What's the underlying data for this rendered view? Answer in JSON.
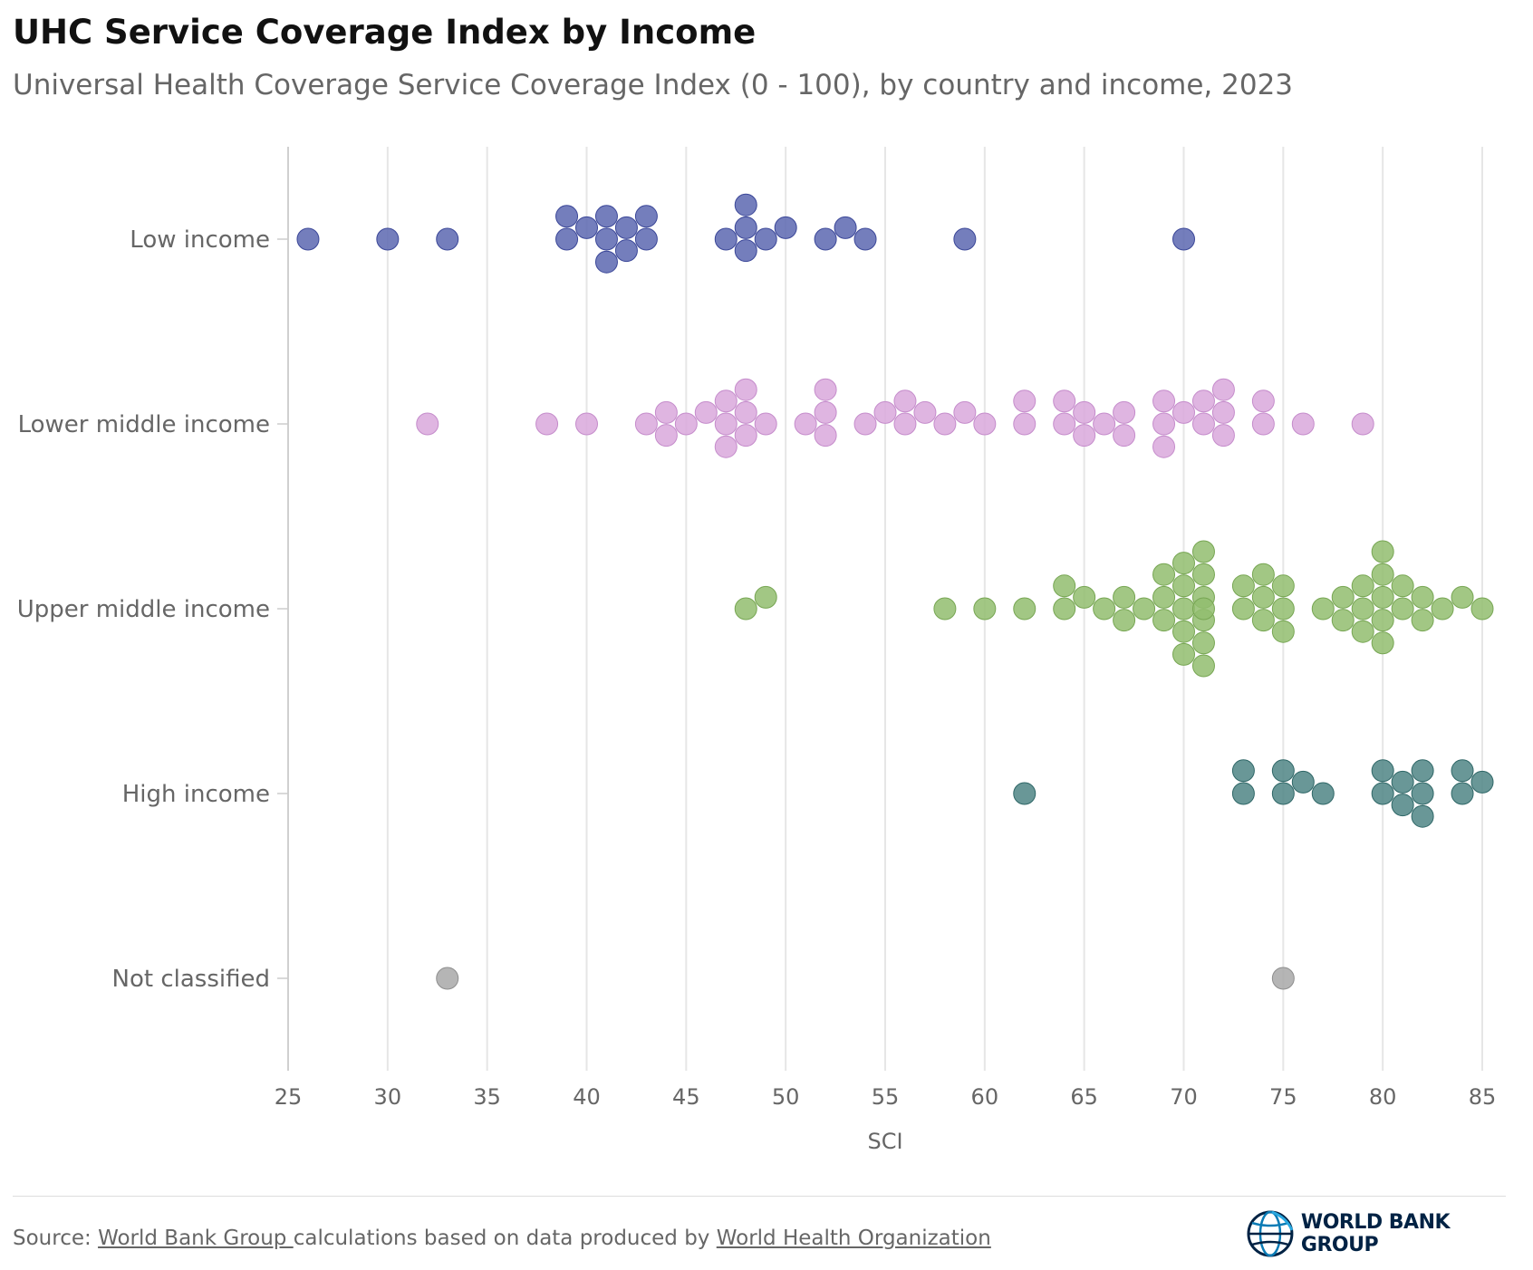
{
  "header": {
    "title": "UHC Service Coverage Index by Income",
    "subtitle": "Universal Health Coverage Service Coverage Index (0 - 100), by country and income, 2023"
  },
  "footer": {
    "source_prefix": "Source: ",
    "source_link1": "World Bank Group ",
    "source_middle": "calculations based on data produced by ",
    "source_link2": "World Health Organization",
    "logo_text": "WORLD BANK GROUP",
    "logo_icon": "globe-icon"
  },
  "chart_data": {
    "type": "scatter",
    "subtype": "beeswarm",
    "title": "UHC Service Coverage Index by Income",
    "subtitle": "Universal Health Coverage Service Coverage Index (0 - 100), by country and income, 2023",
    "xlabel": "SCI",
    "ylabel": "",
    "xlim": [
      25,
      85
    ],
    "xticks": [
      25,
      30,
      35,
      40,
      45,
      50,
      55,
      60,
      65,
      70,
      75,
      80,
      85
    ],
    "grid": "vertical",
    "categories": [
      "Low income",
      "Lower middle income",
      "Upper middle income",
      "High income",
      "Not classified"
    ],
    "series": [
      {
        "name": "Low income",
        "color": "#5c67b0",
        "values": [
          26,
          30,
          33,
          39,
          39,
          40,
          41,
          41,
          41,
          42,
          42,
          43,
          43,
          47,
          48,
          48,
          48,
          49,
          50,
          52,
          53,
          54,
          59,
          70
        ]
      },
      {
        "name": "Lower middle income",
        "color": "#d9a8dc",
        "values": [
          32,
          38,
          40,
          43,
          44,
          44,
          45,
          46,
          47,
          47,
          47,
          48,
          48,
          48,
          49,
          51,
          52,
          52,
          52,
          54,
          55,
          56,
          56,
          57,
          58,
          59,
          60,
          62,
          62,
          64,
          64,
          65,
          65,
          66,
          67,
          67,
          69,
          69,
          69,
          70,
          71,
          71,
          72,
          72,
          72,
          74,
          74,
          76,
          79
        ]
      },
      {
        "name": "Upper middle income",
        "color": "#92bd6e",
        "values": [
          48,
          49,
          58,
          60,
          62,
          64,
          64,
          65,
          66,
          67,
          67,
          68,
          69,
          69,
          69,
          70,
          70,
          70,
          70,
          70,
          71,
          71,
          71,
          71,
          71,
          71,
          71,
          73,
          73,
          74,
          74,
          74,
          75,
          75,
          75,
          77,
          78,
          78,
          79,
          79,
          79,
          80,
          80,
          80,
          80,
          80,
          81,
          81,
          82,
          82,
          83,
          84,
          85
        ]
      },
      {
        "name": "High income",
        "color": "#4f8585",
        "values": [
          62,
          73,
          73,
          75,
          75,
          76,
          77,
          80,
          80,
          81,
          81,
          82,
          82,
          82,
          84,
          84,
          85
        ]
      },
      {
        "name": "Not classified",
        "color": "#a8a8a8",
        "values": [
          33,
          75
        ]
      }
    ]
  }
}
